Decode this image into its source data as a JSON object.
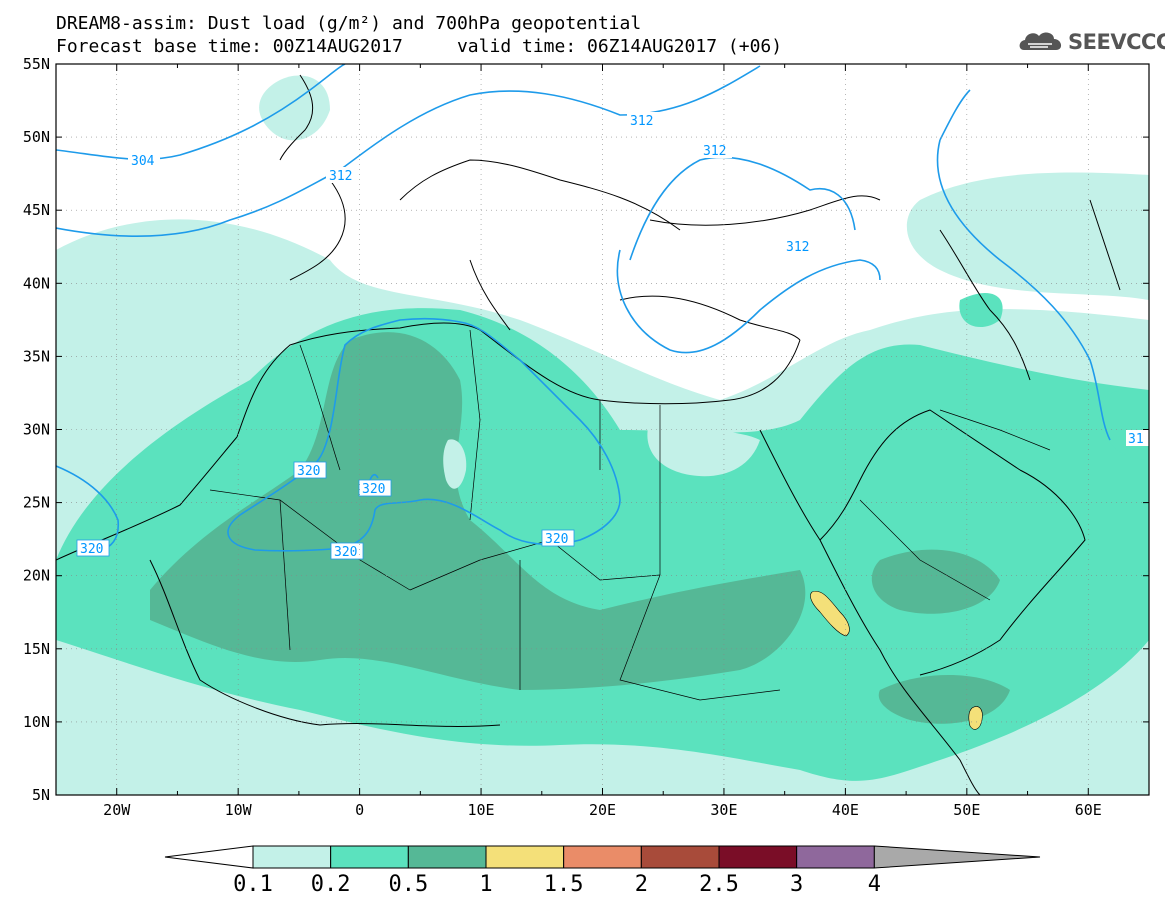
{
  "title": {
    "line1": "DREAM8-assim: Dust load (g/m²) and 700hPa geopotential",
    "line2": "Forecast base time: 00Z14AUG2017     valid time: 06Z14AUG2017 (+06)"
  },
  "logo": {
    "text": "SEEVCCC",
    "icon": "cloud-logo-icon",
    "color": "#555555"
  },
  "axes": {
    "lat_labels": [
      "55N",
      "50N",
      "45N",
      "40N",
      "35N",
      "30N",
      "25N",
      "20N",
      "15N",
      "10N",
      "5N"
    ],
    "lon_labels": [
      "20W",
      "10W",
      "0",
      "10E",
      "20E",
      "30E",
      "40E",
      "50E",
      "60E"
    ],
    "lat_range": [
      5,
      55
    ],
    "lon_range": [
      -25,
      65
    ]
  },
  "colorbar": {
    "labels": [
      "0.1",
      "0.2",
      "0.5",
      "1",
      "1.5",
      "2",
      "2.5",
      "3",
      "4"
    ],
    "colors": [
      "#c3f1e8",
      "#5be2be",
      "#55b896",
      "#f4e079",
      "#ea8c68",
      "#a84b3a",
      "#7a0d27",
      "#8f689c",
      "#a9a9a9"
    ],
    "under_color": "#ffffff"
  },
  "contours": {
    "color": "#1e9bea",
    "labels": [
      {
        "text": "304",
        "lon": -16,
        "lat": 49.2
      },
      {
        "text": "312",
        "lon": -1.5,
        "lat": 47.5
      },
      {
        "text": "312",
        "lon": 21.5,
        "lat": 52
      },
      {
        "text": "312",
        "lon": 27.5,
        "lat": 48
      },
      {
        "text": "312",
        "lon": 28.5,
        "lat": 42.3
      },
      {
        "text": "320",
        "lon": -4.5,
        "lat": 26.8
      },
      {
        "text": "320",
        "lon": 1,
        "lat": 24.8
      },
      {
        "text": "320",
        "lon": -1,
        "lat": 21.8
      },
      {
        "text": "320",
        "lon": 16.2,
        "lat": 22.7
      },
      {
        "text": "320",
        "lon": -22.5,
        "lat": 21.9
      },
      {
        "text": "31",
        "lon": 64.3,
        "lat": 29.5
      }
    ]
  }
}
